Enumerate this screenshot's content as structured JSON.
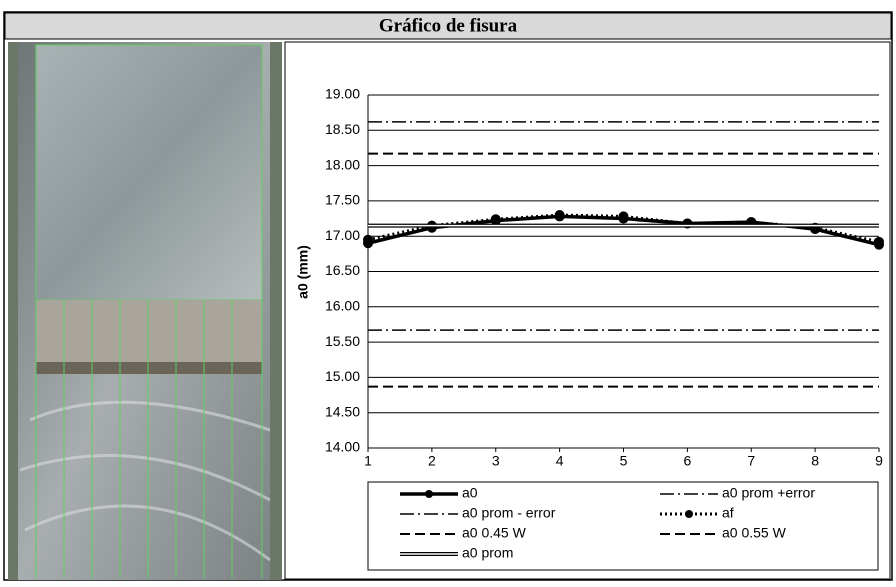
{
  "header": {
    "title": "Gráfico de fisura"
  },
  "chart_data": {
    "type": "line",
    "y_label": "a0 (mm)",
    "x": [
      1,
      2,
      3,
      4,
      5,
      6,
      7,
      8,
      9
    ],
    "xlim": [
      1,
      9
    ],
    "xticks": [
      1,
      2,
      3,
      4,
      5,
      6,
      7,
      8,
      9
    ],
    "ylim": [
      14,
      19
    ],
    "yticks": [
      {
        "value": 14,
        "label": "14.00"
      },
      {
        "value": 14.5,
        "label": "14.50"
      },
      {
        "value": 15,
        "label": "15.00"
      },
      {
        "value": 15.5,
        "label": "15.50"
      },
      {
        "value": 16,
        "label": "16.00"
      },
      {
        "value": 16.5,
        "label": "16.50"
      },
      {
        "value": 17,
        "label": "17.00"
      },
      {
        "value": 17.5,
        "label": "17.50"
      },
      {
        "value": 18,
        "label": "18.00"
      },
      {
        "value": 18.5,
        "label": "18.50"
      },
      {
        "value": 19,
        "label": "19.00"
      }
    ],
    "grid": true,
    "series": [
      {
        "name": "a0",
        "color": "#000000",
        "style": "solid",
        "marker": true,
        "values": [
          16.9,
          17.12,
          17.22,
          17.28,
          17.25,
          17.18,
          17.2,
          17.1,
          16.88
        ]
      },
      {
        "name": "a0 prom +error",
        "color": "#000000",
        "style": "dashdot",
        "marker": false,
        "values": [
          18.62,
          18.62,
          18.62,
          18.62,
          18.62,
          18.62,
          18.62,
          18.62,
          18.62
        ]
      },
      {
        "name": "a0 prom - error",
        "color": "#000000",
        "style": "dashdot",
        "marker": false,
        "values": [
          15.67,
          15.67,
          15.67,
          15.67,
          15.67,
          15.67,
          15.67,
          15.67,
          15.67
        ]
      },
      {
        "name": "af",
        "color": "#000000",
        "style": "dotted",
        "marker": true,
        "values": [
          16.95,
          17.15,
          17.24,
          17.3,
          17.28,
          17.18,
          17.2,
          17.12,
          16.92
        ]
      },
      {
        "name": "a0 0.45 W",
        "color": "#000000",
        "style": "dashed",
        "marker": false,
        "values": [
          14.87,
          14.87,
          14.87,
          14.87,
          14.87,
          14.87,
          14.87,
          14.87,
          14.87
        ]
      },
      {
        "name": "a0 0.55 W",
        "color": "#000000",
        "style": "dashed",
        "marker": false,
        "values": [
          18.17,
          18.17,
          18.17,
          18.17,
          18.17,
          18.17,
          18.17,
          18.17,
          18.17
        ]
      },
      {
        "name": "a0 prom",
        "color": "#000000",
        "style": "double",
        "marker": false,
        "values": [
          17.15,
          17.15,
          17.15,
          17.15,
          17.15,
          17.15,
          17.15,
          17.15,
          17.15
        ]
      }
    ]
  }
}
